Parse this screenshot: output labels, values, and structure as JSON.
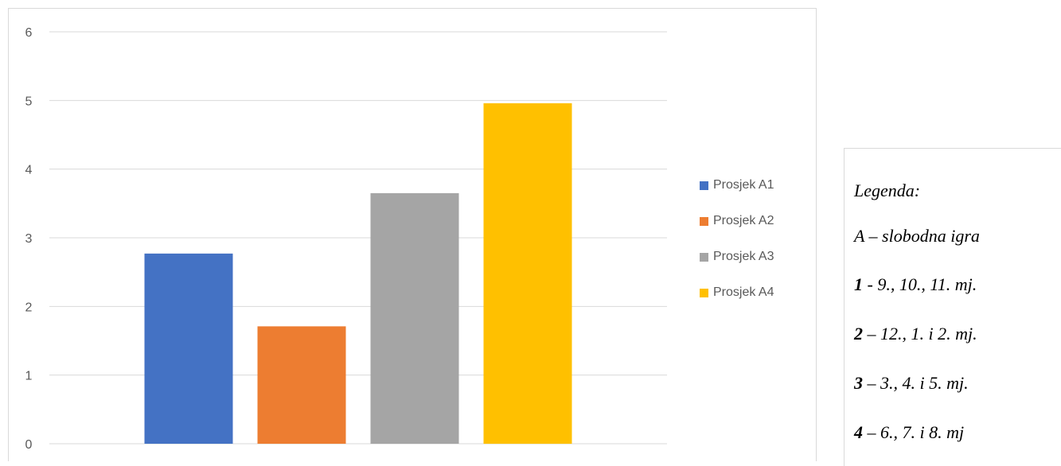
{
  "chart_data": {
    "type": "bar",
    "categories": [
      ""
    ],
    "series": [
      {
        "name": "Prosjek A1",
        "values": [
          2.77
        ],
        "color": "#4472c4"
      },
      {
        "name": "Prosjek A2",
        "values": [
          1.71
        ],
        "color": "#ed7d31"
      },
      {
        "name": "Prosjek A3",
        "values": [
          3.65
        ],
        "color": "#a5a5a5"
      },
      {
        "name": "Prosjek A4",
        "values": [
          4.96
        ],
        "color": "#ffc000"
      }
    ],
    "ylim": [
      0,
      6
    ],
    "yticks": [
      "0",
      "1",
      "2",
      "3",
      "4",
      "5",
      "6"
    ],
    "grid": true,
    "legend_position": "right",
    "gridline_color": "#d9d9d9",
    "tick_color": "#595959"
  },
  "note": {
    "title": "Legenda:",
    "lines": [
      {
        "key": "",
        "text": "A – slobodna igra"
      },
      {
        "key": "1",
        "text": " - 9., 10., 11. mj."
      },
      {
        "key": "2",
        "text": " – 12., 1. i 2. mj."
      },
      {
        "key": "3",
        "text": " – 3., 4. i 5. mj."
      },
      {
        "key": "4",
        "text": " – 6., 7. i 8. mj"
      }
    ]
  }
}
